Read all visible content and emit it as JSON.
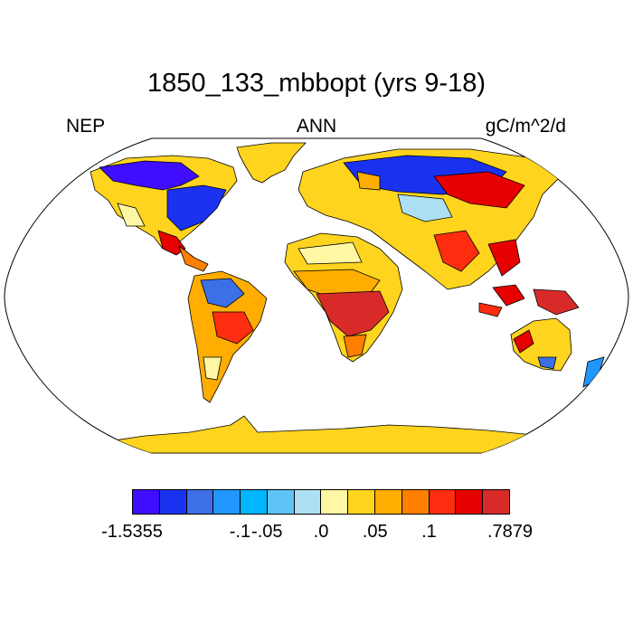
{
  "title": "1850_133_mbbopt (yrs 9-18)",
  "left_label": "NEP",
  "center_label": "ANN",
  "right_label": "gC/m^2/d",
  "colorbar": {
    "colors": [
      "#3f0dff",
      "#1a32f0",
      "#3d6fe6",
      "#2196ff",
      "#00b6ff",
      "#5ec3f5",
      "#aee0f5",
      "#fff7a3",
      "#ffd41f",
      "#ffad00",
      "#ff7f00",
      "#ff2d0f",
      "#e60000",
      "#d92a2a"
    ],
    "labels": [
      "-1.5355",
      "-.1",
      "-.05",
      ".0",
      ".05",
      ".1",
      ".7879"
    ]
  },
  "map_colors": {
    "ocean": "#ffffff",
    "antarctica": "#ffd41f",
    "greenland": "#ffd41f",
    "coast": "#000000"
  }
}
